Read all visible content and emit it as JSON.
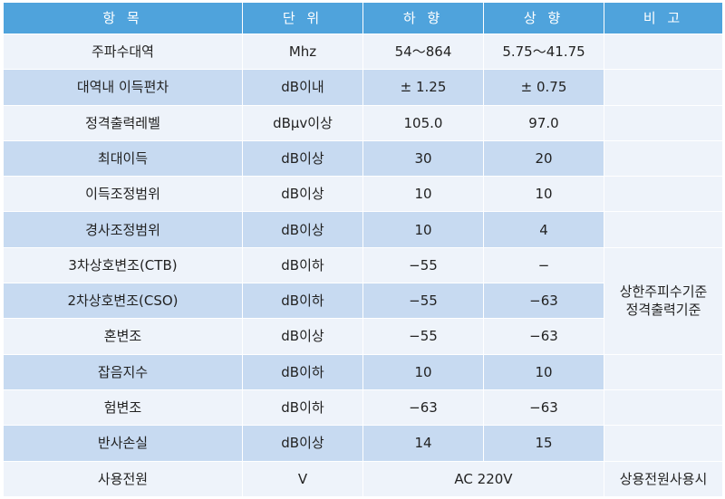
{
  "colors": {
    "header_bg": "#4fa3dc",
    "row_light": "#eef3fa",
    "row_dark": "#c7daf1",
    "note_bg": "#eef3fa"
  },
  "header": [
    "항 목",
    "단 위",
    "하 향",
    "상 향",
    "비 고"
  ],
  "rows": [
    {
      "item": "주파수대역",
      "unit": "Mhz",
      "down": "54～864",
      "up": "5.75～41.75"
    },
    {
      "item": "대역내 이득편차",
      "unit": "dB이내",
      "down": "± 1.25",
      "up": "± 0.75"
    },
    {
      "item": "정격출력레벨",
      "unit": "dBμv이상",
      "down": "105.0",
      "up": "97.0"
    },
    {
      "item": "최대이득",
      "unit": "dB이상",
      "down": "30",
      "up": "20"
    },
    {
      "item": "이득조정범위",
      "unit": "dB이상",
      "down": "10",
      "up": "10"
    },
    {
      "item": "경사조정범위",
      "unit": "dB이상",
      "down": "10",
      "up": "4"
    },
    {
      "item": "3차상호변조(CTB)",
      "unit": "dB이하",
      "down": "−55",
      "up": "−"
    },
    {
      "item": "2차상호변조(CSO)",
      "unit": "dB이하",
      "down": "−55",
      "up": "−63"
    },
    {
      "item": "혼변조",
      "unit": "dB이상",
      "down": "−55",
      "up": "−63"
    },
    {
      "item": "잡음지수",
      "unit": "dB이하",
      "down": "10",
      "up": "10"
    },
    {
      "item": "험변조",
      "unit": "dB이하",
      "down": "−63",
      "up": "−63"
    },
    {
      "item": "반사손실",
      "unit": "dB이상",
      "down": "14",
      "up": "15"
    }
  ],
  "note_group": [
    "상한주피수기준",
    "정격출력기준"
  ],
  "power_row": {
    "item": "사용전원",
    "unit": "V",
    "value": "AC 220V",
    "note": "상용전원사용시"
  }
}
